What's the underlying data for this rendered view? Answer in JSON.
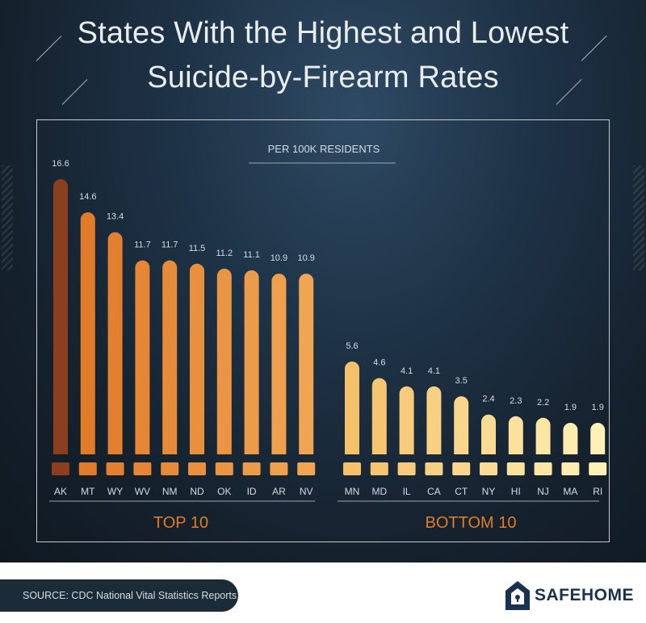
{
  "title_line_1": "States With the Highest and Lowest",
  "title_line_2": "Suicide-by-Firearm Rates",
  "footer_source": "SOURCE: CDC National Vital Statistics Reports",
  "logo_text": "SAFEHOME",
  "colors": {
    "background": "#1a2a38",
    "ak": "#8b3f1e",
    "top_start": "#e07b2a",
    "top_end": "#f0a552",
    "bottom_start": "#f5c06a",
    "bottom_end": "#fdf1b6",
    "axis_text": "#d5dce2",
    "logo": "#1a3250"
  },
  "chart_data": {
    "type": "bar",
    "subtitle": "PER 100K RESIDENTS",
    "groups": [
      {
        "label": "TOP 10",
        "categories": [
          "AK",
          "MT",
          "WY",
          "WV",
          "NM",
          "ND",
          "OK",
          "ID",
          "AR",
          "NV"
        ],
        "values": [
          16.6,
          14.6,
          13.4,
          11.7,
          11.7,
          11.5,
          11.2,
          11.1,
          10.9,
          10.9
        ],
        "value_labels": [
          "16.6",
          "14.6",
          "13.4",
          "11.7",
          "11.7",
          "11.5",
          "11.2",
          "11.1",
          "10.9",
          "10.9"
        ]
      },
      {
        "label": "BOTTOM 10",
        "categories": [
          "MN",
          "MD",
          "IL",
          "CA",
          "CT",
          "NY",
          "HI",
          "NJ",
          "MA",
          "RI"
        ],
        "values": [
          5.6,
          4.6,
          4.1,
          4.1,
          3.5,
          2.4,
          2.3,
          2.2,
          1.9,
          1.9
        ],
        "value_labels": [
          "5.6",
          "4.6",
          "4.1",
          "4.1",
          "3.5",
          "2.4",
          "2.3",
          "2.2",
          "1.9",
          "1.9"
        ]
      }
    ],
    "ylim": [
      0,
      16.6
    ],
    "grid": false
  }
}
